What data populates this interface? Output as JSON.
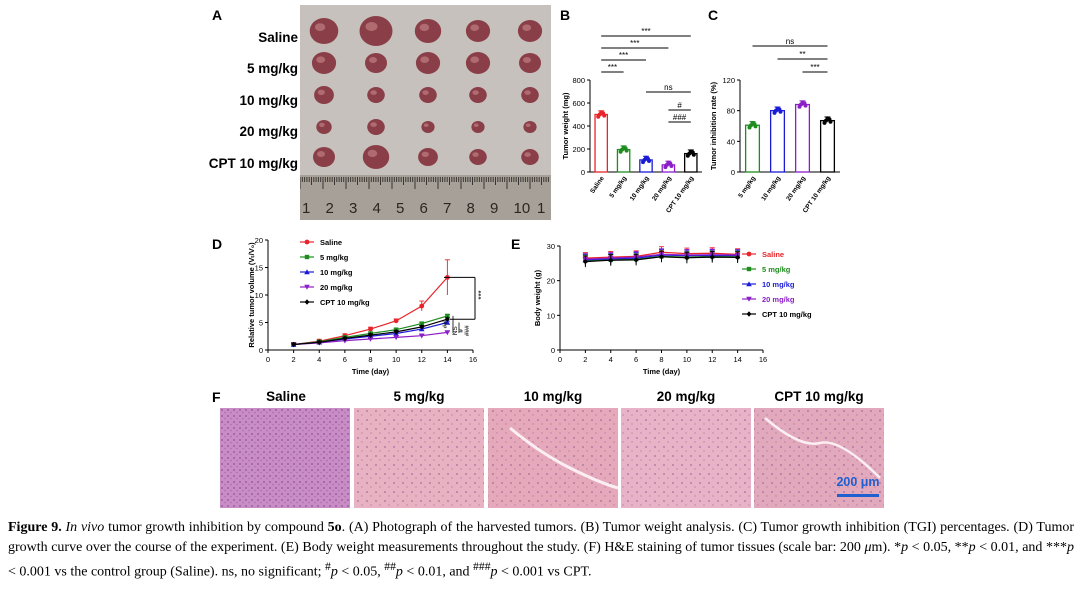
{
  "panel_letters": [
    "A",
    "B",
    "C",
    "D",
    "E",
    "F"
  ],
  "panelA": {
    "row_labels": [
      "Saline",
      "5 mg/kg",
      "10 mg/kg",
      "20 mg/kg",
      "CPT 10 mg/kg"
    ],
    "ruler_numbers": [
      "1",
      "2",
      "3",
      "4",
      "5",
      "6",
      "7",
      "8",
      "9",
      "10",
      "1"
    ]
  },
  "groups": [
    "Saline",
    "5 mg/kg",
    "10 mg/kg",
    "20 mg/kg",
    "CPT 10 mg/kg"
  ],
  "colors": {
    "saline": "#e8242a",
    "g5": "#1e8c1e",
    "g10": "#1b1bd6",
    "g20": "#8c1ec8",
    "cpt": "#000000"
  },
  "chart_data": [
    {
      "panel": "B",
      "type": "bar",
      "categories": [
        "Saline",
        "5 mg/kg",
        "10 mg/kg",
        "20 mg/kg",
        "CPT 10 mg/kg"
      ],
      "values": [
        500,
        195,
        105,
        62,
        160
      ],
      "ylabel": "Tumor weight (mg)",
      "ylim": [
        0,
        800
      ],
      "yticks": [
        "0",
        "200",
        "400",
        "600",
        "800"
      ],
      "significance": [
        "***",
        "***",
        "***",
        "***",
        "ns",
        "#",
        "###"
      ]
    },
    {
      "panel": "C",
      "type": "bar",
      "categories": [
        "5 mg/kg",
        "10 mg/kg",
        "20 mg/kg",
        "CPT 10 mg/kg"
      ],
      "values": [
        61,
        80,
        88,
        67
      ],
      "ylabel": "Tumor inhibition rate (%)",
      "ylim": [
        0,
        120
      ],
      "yticks": [
        "0",
        "40",
        "80",
        "120"
      ],
      "significance": [
        "ns",
        "**",
        "***"
      ]
    },
    {
      "panel": "D",
      "type": "line",
      "x": [
        2,
        4,
        6,
        8,
        10,
        12,
        14
      ],
      "xlabel": "Time (day)",
      "ylabel": "Relative tumor volume (Vₜ/V₀)",
      "ylim": [
        0,
        20
      ],
      "xlim": [
        0,
        16
      ],
      "xticks": [
        "0",
        "2",
        "4",
        "6",
        "8",
        "10",
        "12",
        "14",
        "16"
      ],
      "yticks": [
        "0",
        "5",
        "10",
        "15",
        "20"
      ],
      "series": [
        {
          "name": "Saline",
          "values": [
            1.0,
            1.6,
            2.6,
            3.8,
            5.3,
            8.0,
            13.2
          ]
        },
        {
          "name": "5 mg/kg",
          "values": [
            1.0,
            1.5,
            2.3,
            3.0,
            3.7,
            4.8,
            6.2
          ]
        },
        {
          "name": "10 mg/kg",
          "values": [
            1.0,
            1.4,
            2.0,
            2.5,
            3.0,
            3.8,
            5.0
          ]
        },
        {
          "name": "20 mg/kg",
          "values": [
            1.0,
            1.3,
            1.7,
            2.0,
            2.3,
            2.6,
            3.2
          ]
        },
        {
          "name": "CPT 10 mg/kg",
          "values": [
            1.0,
            1.4,
            2.1,
            2.7,
            3.3,
            4.2,
            5.6
          ]
        }
      ],
      "significance": [
        "***",
        "NS",
        "#",
        "##",
        "###"
      ]
    },
    {
      "panel": "E",
      "type": "line",
      "x": [
        2,
        4,
        6,
        8,
        10,
        12,
        14
      ],
      "xlabel": "Time (day)",
      "ylabel": "Body weight (g)",
      "ylim": [
        0,
        30
      ],
      "xlim": [
        0,
        16
      ],
      "xticks": [
        "0",
        "2",
        "4",
        "6",
        "8",
        "10",
        "12",
        "14",
        "16"
      ],
      "yticks": [
        "0",
        "10",
        "20",
        "30"
      ],
      "series": [
        {
          "name": "Saline",
          "values": [
            26.5,
            26.8,
            27.0,
            28.2,
            27.8,
            27.9,
            27.6
          ]
        },
        {
          "name": "5 mg/kg",
          "values": [
            25.8,
            26.0,
            26.2,
            27.0,
            26.8,
            27.0,
            26.9
          ]
        },
        {
          "name": "10 mg/kg",
          "values": [
            26.0,
            26.3,
            26.5,
            27.4,
            27.2,
            27.3,
            27.2
          ]
        },
        {
          "name": "20 mg/kg",
          "values": [
            26.2,
            26.5,
            26.8,
            27.6,
            27.4,
            27.5,
            27.4
          ]
        },
        {
          "name": "CPT 10 mg/kg",
          "values": [
            25.5,
            25.9,
            26.0,
            26.9,
            26.6,
            26.8,
            26.7
          ]
        }
      ]
    }
  ],
  "panelF": {
    "titles": [
      "Saline",
      "5 mg/kg",
      "10 mg/kg",
      "20 mg/kg",
      "CPT 10 mg/kg"
    ],
    "scale_bar": "200 μm"
  },
  "caption": {
    "figure_label": "Figure 9.",
    "in_vivo": "In vivo",
    "t1": " tumor growth inhibition by compound ",
    "compound": "5o",
    "t2": ". (A) Photograph of the harvested tumors. (B) Tumor weight analysis. (C) Tumor growth inhibition (TGI) percentages. (D) Tumor growth curve over the course of the experiment. (E) Body weight measurements throughout the study. (F) H&E staining of tumor tissues (scale bar: 200 ",
    "mu": "μ",
    "t3": "m). ",
    "s1": "*",
    "p1": "p",
    "t4": " < 0.05, ",
    "s2": "**",
    "p2": "p",
    "t5": " < 0.01, and ",
    "s3": "***",
    "p3": "p",
    "t6": " < 0.001 vs the control group (Saline). ns, no significant; ",
    "h1": "#",
    "p4": "p",
    "t7": " < 0.05, ",
    "h2": "##",
    "p5": "p",
    "t8": " < 0.01, and ",
    "h3": "###",
    "p6": "p",
    "t9": " < 0.001 vs CPT."
  }
}
